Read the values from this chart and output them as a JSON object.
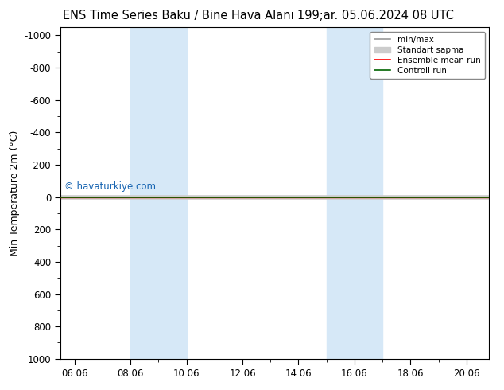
{
  "title_left": "ENS Time Series Baku / Bine Hava Alanı",
  "title_right": "199;ar. 05.06.2024 08 UTC",
  "ylabel": "Min Temperature 2m (°C)",
  "ylim_bottom": 1000,
  "ylim_top": -1050,
  "yticks": [
    -1000,
    -800,
    -600,
    -400,
    -200,
    0,
    200,
    400,
    600,
    800,
    1000
  ],
  "xtick_labels": [
    "06.06",
    "08.06",
    "10.06",
    "12.06",
    "14.06",
    "16.06",
    "18.06",
    "20.06"
  ],
  "xtick_days": [
    6,
    8,
    10,
    12,
    14,
    16,
    18,
    20
  ],
  "x_min": 5.5,
  "x_max": 20.8,
  "blue_bands": [
    {
      "start": 8.0,
      "end": 10.0
    },
    {
      "start": 15.0,
      "end": 17.0
    }
  ],
  "flat_line_y": 0,
  "control_run_color": "#006400",
  "ensemble_mean_color": "#ff0000",
  "minmax_color": "#999999",
  "standart_sapma_color": "#cccccc",
  "blue_band_color": "#d6e8f7",
  "background_color": "#ffffff",
  "watermark": "© havaturkiye.com",
  "watermark_color": "#0055aa",
  "legend_entries": [
    "min/max",
    "Standart sapma",
    "Ensemble mean run",
    "Controll run"
  ],
  "title_fontsize": 10.5,
  "tick_fontsize": 8.5,
  "ylabel_fontsize": 9
}
